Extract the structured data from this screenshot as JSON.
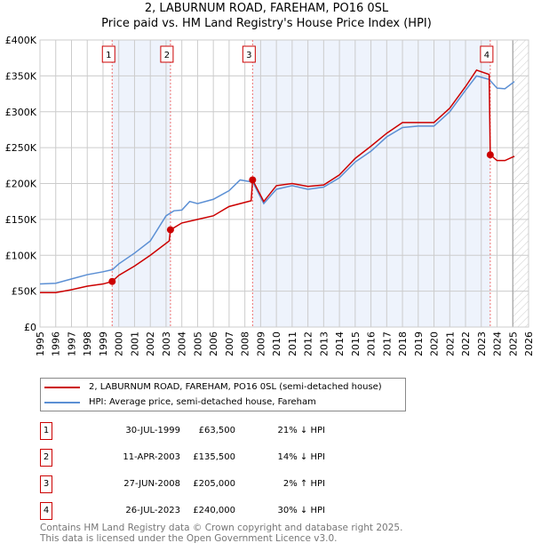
{
  "header": {
    "title": "2, LABURNUM ROAD, FAREHAM, PO16 0SL",
    "subtitle": "Price paid vs. HM Land Registry's House Price Index (HPI)"
  },
  "chart_data": {
    "type": "line",
    "title": "2, LABURNUM ROAD, FAREHAM, PO16 0SL — Price paid vs. HM Land Registry's House Price Index (HPI)",
    "xlim": [
      1995,
      2026
    ],
    "ylim": [
      0,
      400000
    ],
    "x_ticks": [
      "1995",
      "1996",
      "1997",
      "1998",
      "1999",
      "2000",
      "2001",
      "2002",
      "2003",
      "2004",
      "2005",
      "2006",
      "2007",
      "2008",
      "2009",
      "2010",
      "2011",
      "2012",
      "2013",
      "2014",
      "2015",
      "2016",
      "2017",
      "2018",
      "2019",
      "2020",
      "2021",
      "2022",
      "2023",
      "2024",
      "2025",
      "2026"
    ],
    "y_ticks": [
      {
        "v": 0,
        "label": "£0"
      },
      {
        "v": 50000,
        "label": "£50K"
      },
      {
        "v": 100000,
        "label": "£100K"
      },
      {
        "v": 150000,
        "label": "£150K"
      },
      {
        "v": 200000,
        "label": "£200K"
      },
      {
        "v": 250000,
        "label": "£250K"
      },
      {
        "v": 300000,
        "label": "£300K"
      },
      {
        "v": 350000,
        "label": "£350K"
      },
      {
        "v": 400000,
        "label": "£400K"
      }
    ],
    "grid": true,
    "series": [
      {
        "name": "2, LABURNUM ROAD, FAREHAM, PO16 0SL (semi-detached house)",
        "color": "#cc0000",
        "x": [
          1995,
          1996,
          1997,
          1998,
          1999,
          1999.58,
          2000,
          2001,
          2002,
          2003.2,
          2003.28,
          2004,
          2005,
          2006,
          2007,
          2008.4,
          2008.49,
          2009.2,
          2010,
          2011,
          2012,
          2013,
          2014,
          2015,
          2016,
          2017,
          2018,
          2019,
          2020,
          2021,
          2022,
          2022.7,
          2023.5,
          2023.57,
          2024,
          2024.5,
          2025.1
        ],
        "y": [
          48000,
          48000,
          52000,
          57000,
          60000,
          63500,
          72000,
          85000,
          100000,
          120000,
          135500,
          145000,
          150000,
          155000,
          168000,
          176000,
          205000,
          175000,
          197000,
          200000,
          196000,
          198000,
          212000,
          235000,
          252000,
          270000,
          285000,
          285000,
          285000,
          305000,
          335000,
          358000,
          352000,
          240000,
          232000,
          232000,
          238000
        ]
      },
      {
        "name": "HPI: Average price, semi-detached house, Fareham",
        "color": "#5b8fd4",
        "x": [
          1995,
          1996,
          1997,
          1998,
          1999,
          1999.6,
          2000,
          2001,
          2002,
          2003,
          2003.5,
          2004,
          2004.5,
          2005,
          2006,
          2007,
          2007.7,
          2008.5,
          2009.2,
          2010,
          2011,
          2012,
          2013,
          2014,
          2015,
          2016,
          2017,
          2018,
          2019,
          2020,
          2021,
          2022,
          2022.7,
          2023.5,
          2024,
          2024.5,
          2025.1
        ],
        "y": [
          60000,
          61000,
          67000,
          73000,
          77000,
          80000,
          88000,
          103000,
          120000,
          155000,
          162000,
          163000,
          175000,
          172000,
          178000,
          190000,
          205000,
          202000,
          172000,
          192000,
          197000,
          192000,
          195000,
          208000,
          230000,
          245000,
          265000,
          278000,
          280000,
          280000,
          300000,
          330000,
          350000,
          345000,
          333000,
          332000,
          342000
        ]
      }
    ],
    "sales": [
      {
        "n": "1",
        "x": 1999.58,
        "date": "30-JUL-1999",
        "price": "£63,500",
        "price_value": 63500,
        "hpi": "21% ↓ HPI"
      },
      {
        "n": "2",
        "x": 2003.28,
        "date": "11-APR-2003",
        "price": "£135,500",
        "price_value": 135500,
        "hpi": "14% ↓ HPI"
      },
      {
        "n": "3",
        "x": 2008.49,
        "date": "27-JUN-2008",
        "price": "£205,000",
        "price_value": 205000,
        "hpi": "2% ↑ HPI"
      },
      {
        "n": "4",
        "x": 2023.57,
        "date": "26-JUL-2023",
        "price": "£240,000",
        "price_value": 240000,
        "hpi": "30% ↓ HPI"
      }
    ],
    "legend": "below-chart",
    "forecast_from": 2025.0
  },
  "legend": {
    "items": [
      "2, LABURNUM ROAD, FAREHAM, PO16 0SL (semi-detached house)",
      "HPI: Average price, semi-detached house, Fareham"
    ]
  },
  "footer": {
    "line1": "Contains HM Land Registry data © Crown copyright and database right 2025.",
    "line2": "This data is licensed under the Open Government Licence v3.0."
  }
}
